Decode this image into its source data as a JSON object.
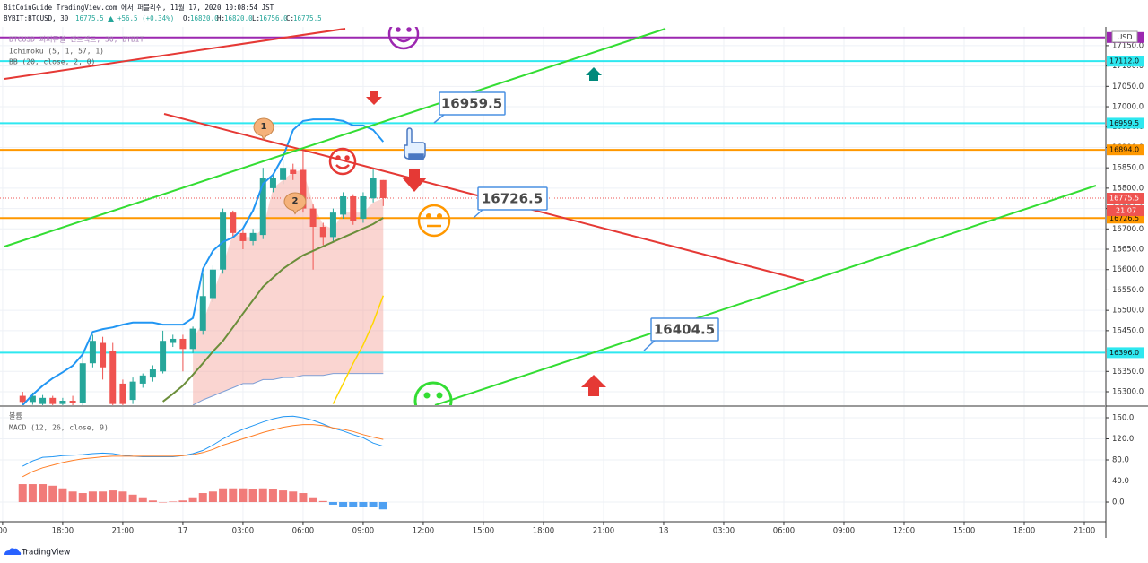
{
  "header": {
    "published": "BitCoinGuide TradingView.com 에서 퍼블리쉬, 11월 17, 2020 10:08:54 JST",
    "symbol": "BYBIT:BTCUSD, 30",
    "price": "16775.5",
    "change": "+56.5 (+0.34%)",
    "ohlc": [
      {
        "label": "O:",
        "value": "16820.0"
      },
      {
        "label": "H:",
        "value": "16820.0"
      },
      {
        "label": "L:",
        "value": "16756.0"
      },
      {
        "label": "C:",
        "value": "16775.5"
      }
    ]
  },
  "footer": {
    "brand": "TradingView"
  },
  "chart_data": [
    {
      "type": "candlestick",
      "legend": [
        "BTCUSD 퍼퍼튜얼 컨트랙트, 30, BYBIT",
        "Ichimoku (5, 1, 57, 1)",
        "BB (20, close, 2, 0)"
      ],
      "axis_unit": "USD",
      "up_color": "#26a69a",
      "down_color": "#ef5350",
      "grid": true,
      "xlim": [
        14.87,
        70.03
      ],
      "ylim": [
        16267,
        17196
      ],
      "yticks": [
        {
          "value": 16300,
          "label": "16300.0"
        },
        {
          "value": 16350,
          "label": "16350.0"
        },
        {
          "value": 16400,
          "label": "16400.0"
        },
        {
          "value": 16450,
          "label": "16450.0"
        },
        {
          "value": 16500,
          "label": "16500.0"
        },
        {
          "value": 16550,
          "label": "16550.0"
        },
        {
          "value": 16600,
          "label": "16600.0"
        },
        {
          "value": 16650,
          "label": "16650.0"
        },
        {
          "value": 16700,
          "label": "16700.0"
        },
        {
          "value": 16750,
          "label": "16750.0"
        },
        {
          "value": 16800,
          "label": "16800.0"
        },
        {
          "value": 16850,
          "label": "16850.0"
        },
        {
          "value": 16900,
          "label": "16900.0"
        },
        {
          "value": 16950,
          "label": "16950.0"
        },
        {
          "value": 17000,
          "label": "17000.0"
        },
        {
          "value": 17050,
          "label": "17050.0"
        },
        {
          "value": 17100,
          "label": "17100.0"
        },
        {
          "value": 17150,
          "label": "17150.0"
        }
      ],
      "x": [
        16,
        16.5,
        17,
        17.5,
        18,
        18.5,
        19,
        19.5,
        20,
        20.5,
        21,
        21.5,
        22,
        22.5,
        23,
        23.5,
        24,
        24.5,
        25,
        25.5,
        26,
        26.5,
        27,
        27.5,
        28,
        28.5,
        29,
        29.5,
        30,
        30.5,
        31,
        31.5,
        32,
        32.5,
        33,
        33.5,
        34
      ],
      "open": [
        16290,
        16275,
        16270,
        16285,
        16270,
        16278,
        16272,
        16370,
        16420,
        16400,
        16320,
        16280,
        16320,
        16335,
        16350,
        16420,
        16430,
        16405,
        16450,
        16530,
        16600,
        16740,
        16690,
        16670,
        16685,
        16800,
        16820,
        16845,
        16845,
        16750,
        16705,
        16680,
        16735,
        16780,
        16725,
        16775,
        16820
      ],
      "high": [
        16300,
        16298,
        16292,
        16290,
        16285,
        16290,
        16390,
        16440,
        16435,
        16420,
        16330,
        16335,
        16345,
        16365,
        16450,
        16440,
        16440,
        16460,
        16590,
        16610,
        16750,
        16745,
        16700,
        16700,
        16850,
        16835,
        16870,
        16860,
        16900,
        16760,
        16715,
        16750,
        16790,
        16785,
        16790,
        16850,
        16820
      ],
      "low": [
        16262,
        16268,
        16262,
        16262,
        16262,
        16262,
        16262,
        16360,
        16330,
        16262,
        16262,
        16270,
        16310,
        16325,
        16345,
        16410,
        16350,
        16395,
        16440,
        16520,
        16590,
        16680,
        16650,
        16660,
        16675,
        16790,
        16810,
        16820,
        16740,
        16600,
        16660,
        16670,
        16725,
        16710,
        16715,
        16765,
        16756
      ],
      "close": [
        16275,
        16290,
        16285,
        16270,
        16278,
        16272,
        16370,
        16425,
        16360,
        16270,
        16270,
        16325,
        16340,
        16355,
        16425,
        16430,
        16405,
        16455,
        16535,
        16600,
        16740,
        16690,
        16670,
        16690,
        16825,
        16825,
        16850,
        16835,
        16750,
        16705,
        16680,
        16740,
        16780,
        16720,
        16780,
        16825,
        16775.5
      ],
      "cloud": {
        "color": "#f4a19a",
        "upper": [
          null,
          null,
          null,
          null,
          null,
          null,
          null,
          null,
          null,
          null,
          null,
          null,
          null,
          null,
          null,
          null,
          null,
          16430,
          16470,
          16540,
          16610,
          16690,
          16680,
          16680,
          16700,
          16800,
          16820,
          16840,
          16845,
          16760,
          16710,
          16700,
          16740,
          16740,
          16740,
          16765,
          16775
        ],
        "lower": [
          null,
          null,
          null,
          null,
          null,
          null,
          null,
          null,
          null,
          null,
          null,
          null,
          null,
          null,
          null,
          null,
          null,
          16267,
          16280,
          16290,
          16300,
          16310,
          16320,
          16320,
          16330,
          16330,
          16335,
          16335,
          16340,
          16340,
          16340,
          16345,
          16345,
          16345,
          16345,
          16345,
          16345
        ]
      },
      "series": [
        {
          "color": "#2196f3",
          "values": [
            16267,
            16293,
            16315,
            16333,
            16348,
            16364,
            16392,
            16447,
            16454,
            16458,
            16465,
            16470,
            16470,
            16470,
            16465,
            16465,
            16465,
            16481,
            16602,
            16646,
            16668,
            16679,
            16701,
            16745,
            16811,
            16833,
            16877,
            16943,
            16965,
            16969,
            16969,
            16969,
            16965,
            16954,
            16954,
            16943,
            16914
          ]
        },
        {
          "color": "#6b8e3a",
          "values": [
            null,
            null,
            null,
            null,
            null,
            null,
            null,
            null,
            null,
            null,
            null,
            null,
            null,
            null,
            16276,
            16295,
            16315,
            16342,
            16370,
            16399,
            16425,
            16458,
            16492,
            16525,
            16558,
            16580,
            16602,
            16619,
            16635,
            16646,
            16657,
            16668,
            16679,
            16690,
            16701,
            16712,
            16727
          ]
        },
        {
          "color": "#ffd600",
          "values": [
            null,
            null,
            null,
            null,
            null,
            null,
            null,
            null,
            null,
            null,
            null,
            null,
            null,
            null,
            null,
            null,
            null,
            null,
            null,
            null,
            null,
            null,
            null,
            null,
            null,
            null,
            null,
            null,
            null,
            null,
            null,
            16270,
            16320,
            16370,
            16415,
            16470,
            16536
          ]
        }
      ],
      "price_lines": [
        {
          "value": 17170,
          "color": "#9c27b0"
        },
        {
          "value": 17112.0,
          "label": "17112.0",
          "color": "#2ee8f0"
        },
        {
          "value": 16959.5,
          "label": "16959.5",
          "color": "#2ee8f0"
        },
        {
          "value": 16894.0,
          "label": "16894.0",
          "color": "#ff9800"
        },
        {
          "value": 16726.5,
          "label": "16726.5",
          "color": "#ff9800"
        },
        {
          "value": 16396.0,
          "label": "16396.0",
          "color": "#2ee8f0"
        }
      ],
      "last_price": {
        "value": 16775.5,
        "label": "16775.5",
        "countdown": "21:07",
        "color": "#ef5350"
      },
      "annotations": [
        "16959.5",
        "16726.5",
        "16404.5",
        "1",
        "2"
      ]
    },
    {
      "type": "macd",
      "legend": [
        "볼륨",
        "MACD (12, 26, close, 9)"
      ],
      "positive_color": "#ef6461",
      "negative_color": "#2f8ff0",
      "grid": true,
      "xlim": [
        14.87,
        70.03
      ],
      "ylim": [
        -37.4,
        178.7
      ],
      "yticks": [
        {
          "value": 0,
          "label": "0.0"
        },
        {
          "value": 40,
          "label": "40.0"
        },
        {
          "value": 80,
          "label": "80.0"
        },
        {
          "value": 120,
          "label": "120.0"
        },
        {
          "value": 160,
          "label": "160.0"
        }
      ],
      "xticks": [
        {
          "value": 15,
          "label": "00"
        },
        {
          "value": 18,
          "label": "18:00"
        },
        {
          "value": 21,
          "label": "21:00"
        },
        {
          "value": 24,
          "label": "17"
        },
        {
          "value": 27,
          "label": "03:00"
        },
        {
          "value": 30,
          "label": "06:00"
        },
        {
          "value": 33,
          "label": "09:00"
        },
        {
          "value": 36,
          "label": "12:00"
        },
        {
          "value": 39,
          "label": "15:00"
        },
        {
          "value": 42,
          "label": "18:00"
        },
        {
          "value": 45,
          "label": "21:00"
        },
        {
          "value": 48,
          "label": "18"
        },
        {
          "value": 51,
          "label": "03:00"
        },
        {
          "value": 54,
          "label": "06:00"
        },
        {
          "value": 57,
          "label": "09:00"
        },
        {
          "value": 60,
          "label": "12:00"
        },
        {
          "value": 63,
          "label": "15:00"
        },
        {
          "value": 66,
          "label": "18:00"
        },
        {
          "value": 69,
          "label": "21:00"
        }
      ],
      "x": [
        16,
        16.5,
        17,
        17.5,
        18,
        18.5,
        19,
        19.5,
        20,
        20.5,
        21,
        21.5,
        22,
        22.5,
        23,
        23.5,
        24,
        24.5,
        25,
        25.5,
        26,
        26.5,
        27,
        27.5,
        28,
        28.5,
        29,
        29.5,
        30,
        30.5,
        31,
        31.5,
        32,
        32.5,
        33,
        33.5,
        34
      ],
      "values": [
        34,
        34,
        34,
        31,
        26,
        20,
        17,
        20,
        20,
        22,
        20,
        14,
        9,
        3,
        0,
        1,
        3,
        9,
        17,
        20,
        26,
        26,
        26,
        24,
        26,
        24,
        22,
        20,
        17,
        9,
        2,
        -5,
        -9,
        -9,
        -9,
        -10,
        -14
      ],
      "series": [
        {
          "color": "#2196f3",
          "values": [
            68,
            78,
            85,
            86,
            88,
            89,
            90,
            92,
            93,
            92,
            89,
            87,
            86,
            86,
            86,
            86,
            88,
            92,
            98,
            108,
            120,
            130,
            138,
            145,
            152,
            158,
            162,
            163,
            160,
            155,
            148,
            140,
            135,
            128,
            122,
            112,
            106
          ]
        },
        {
          "color": "#ff7f27",
          "values": [
            48,
            58,
            65,
            70,
            75,
            79,
            82,
            84,
            86,
            87,
            87,
            87,
            87,
            87,
            87,
            87,
            88,
            90,
            94,
            100,
            108,
            114,
            120,
            126,
            132,
            137,
            142,
            145,
            147,
            147,
            145,
            141,
            138,
            134,
            128,
            123,
            119
          ]
        }
      ]
    }
  ]
}
